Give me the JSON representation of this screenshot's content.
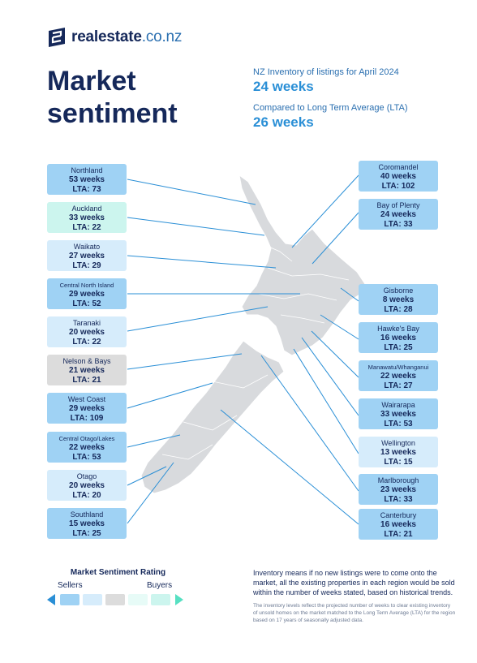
{
  "brand": {
    "name_main": "realestate",
    "name_domain": ".co.nz",
    "icon": "realestate-e-logo-icon",
    "color": "#15285a"
  },
  "title": {
    "line1": "Market",
    "line2": "sentiment"
  },
  "stats": {
    "inventory_label": "NZ Inventory of listings for April 2024",
    "inventory_value": "24 weeks",
    "lta_label": "Compared to Long Term Average (LTA)",
    "lta_value": "26 weeks"
  },
  "colors": {
    "sellers_strong": "#9fd2f4",
    "sellers": "#d6ecfb",
    "neutral": "#dcdcdc",
    "buyers": "#ccf5ee",
    "buyers_strong": "#57e0c2",
    "accent": "#2a8fd6"
  },
  "regions_left": [
    {
      "name": "Northland",
      "weeks": "53 weeks",
      "lta": "LTA: 73"
    },
    {
      "name": "Auckland",
      "weeks": "33 weeks",
      "lta": "LTA: 22"
    },
    {
      "name": "Waikato",
      "weeks": "27 weeks",
      "lta": "LTA: 29"
    },
    {
      "name": "Central North Island",
      "weeks": "29 weeks",
      "lta": "LTA: 52"
    },
    {
      "name": "Taranaki",
      "weeks": "20 weeks",
      "lta": "LTA: 22"
    },
    {
      "name": "Nelson & Bays",
      "weeks": "21 weeks",
      "lta": "LTA: 21"
    },
    {
      "name": "West Coast",
      "weeks": "29 weeks",
      "lta": "LTA: 109"
    },
    {
      "name": "Central Otago/Lakes",
      "weeks": "22 weeks",
      "lta": "LTA: 53"
    },
    {
      "name": "Otago",
      "weeks": "20 weeks",
      "lta": "LTA: 20"
    },
    {
      "name": "Southland",
      "weeks": "15 weeks",
      "lta": "LTA: 25"
    }
  ],
  "regions_right": [
    {
      "name": "Coromandel",
      "weeks": "40 weeks",
      "lta": "LTA: 102"
    },
    {
      "name": "Bay of Plenty",
      "weeks": "24 weeks",
      "lta": "LTA: 33"
    },
    {
      "name": "Gisborne",
      "weeks": "8 weeks",
      "lta": "LTA: 28"
    },
    {
      "name": "Hawke's Bay",
      "weeks": "16 weeks",
      "lta": "LTA: 25"
    },
    {
      "name": "Manawatu/Whanganui",
      "weeks": "22 weeks",
      "lta": "LTA: 27"
    },
    {
      "name": "Wairarapa",
      "weeks": "33 weeks",
      "lta": "LTA: 53"
    },
    {
      "name": "Wellington",
      "weeks": "13 weeks",
      "lta": "LTA: 15"
    },
    {
      "name": "Marlborough",
      "weeks": "23 weeks",
      "lta": "LTA: 33"
    },
    {
      "name": "Canterbury",
      "weeks": "16 weeks",
      "lta": "LTA: 21"
    }
  ],
  "legend": {
    "title": "Market Sentiment Rating",
    "left_label": "Sellers",
    "right_label": "Buyers"
  },
  "notes": {
    "main": "Inventory means if no new listings were to come onto the market, all the existing properties in each region would be sold within the number of weeks stated, based on historical trends.",
    "small": "The inventory levels reflect the projected number of weeks to clear existing inventory of unsold homes on the market matched to the Long Term Average (LTA) for the region based on 17 years of seasonally adjusted data."
  }
}
